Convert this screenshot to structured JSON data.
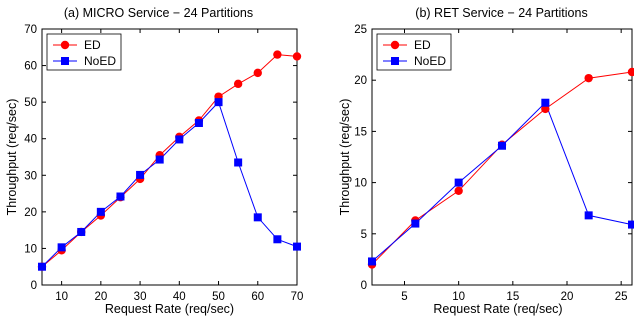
{
  "chart_data": [
    {
      "type": "line",
      "title": "(a) MICRO Service − 24 Partitions",
      "xlabel": "Request Rate (req/sec)",
      "ylabel": "Throughput (req/sec)",
      "xlim": [
        5,
        70
      ],
      "ylim": [
        0,
        70
      ],
      "xticks": [
        10,
        20,
        30,
        40,
        50,
        60,
        70
      ],
      "yticks": [
        0,
        10,
        20,
        30,
        40,
        50,
        60,
        70
      ],
      "grid": false,
      "legend_position": "top-left",
      "series": [
        {
          "name": "ED",
          "color": "#ff0000",
          "marker": "circle",
          "x": [
            5,
            10,
            15,
            20,
            25,
            30,
            35,
            40,
            45,
            50,
            55,
            60,
            65,
            70
          ],
          "y": [
            5,
            9.5,
            14.5,
            19,
            24,
            29,
            35.5,
            40.5,
            45,
            51.5,
            55,
            58,
            63,
            62.5
          ]
        },
        {
          "name": "NoED",
          "color": "#0000ff",
          "marker": "square",
          "x": [
            5,
            10,
            15,
            20,
            25,
            30,
            35,
            40,
            45,
            50,
            55,
            60,
            65,
            70
          ],
          "y": [
            5,
            10.3,
            14.5,
            20,
            24.2,
            30.1,
            34.3,
            39.8,
            44.3,
            50,
            33.5,
            18.5,
            12.5,
            10.5
          ]
        }
      ]
    },
    {
      "type": "line",
      "title": "(b) RET Service − 24 Partitions",
      "xlabel": "Request Rate (req/sec)",
      "ylabel": "Throughput (req/sec)",
      "xlim": [
        2,
        26
      ],
      "ylim": [
        0,
        25
      ],
      "xticks": [
        5,
        10,
        15,
        20,
        25
      ],
      "yticks": [
        0,
        5,
        10,
        15,
        20,
        25
      ],
      "grid": false,
      "legend_position": "top-left",
      "series": [
        {
          "name": "ED",
          "color": "#ff0000",
          "marker": "circle",
          "x": [
            2,
            6,
            10,
            14,
            18,
            22,
            26
          ],
          "y": [
            2,
            6.3,
            9.2,
            13.7,
            17.2,
            20.2,
            20.8
          ]
        },
        {
          "name": "NoED",
          "color": "#0000ff",
          "marker": "square",
          "x": [
            2,
            6,
            10,
            14,
            18,
            22,
            26
          ],
          "y": [
            2.3,
            6,
            10,
            13.6,
            17.8,
            6.8,
            5.9
          ]
        }
      ]
    }
  ]
}
